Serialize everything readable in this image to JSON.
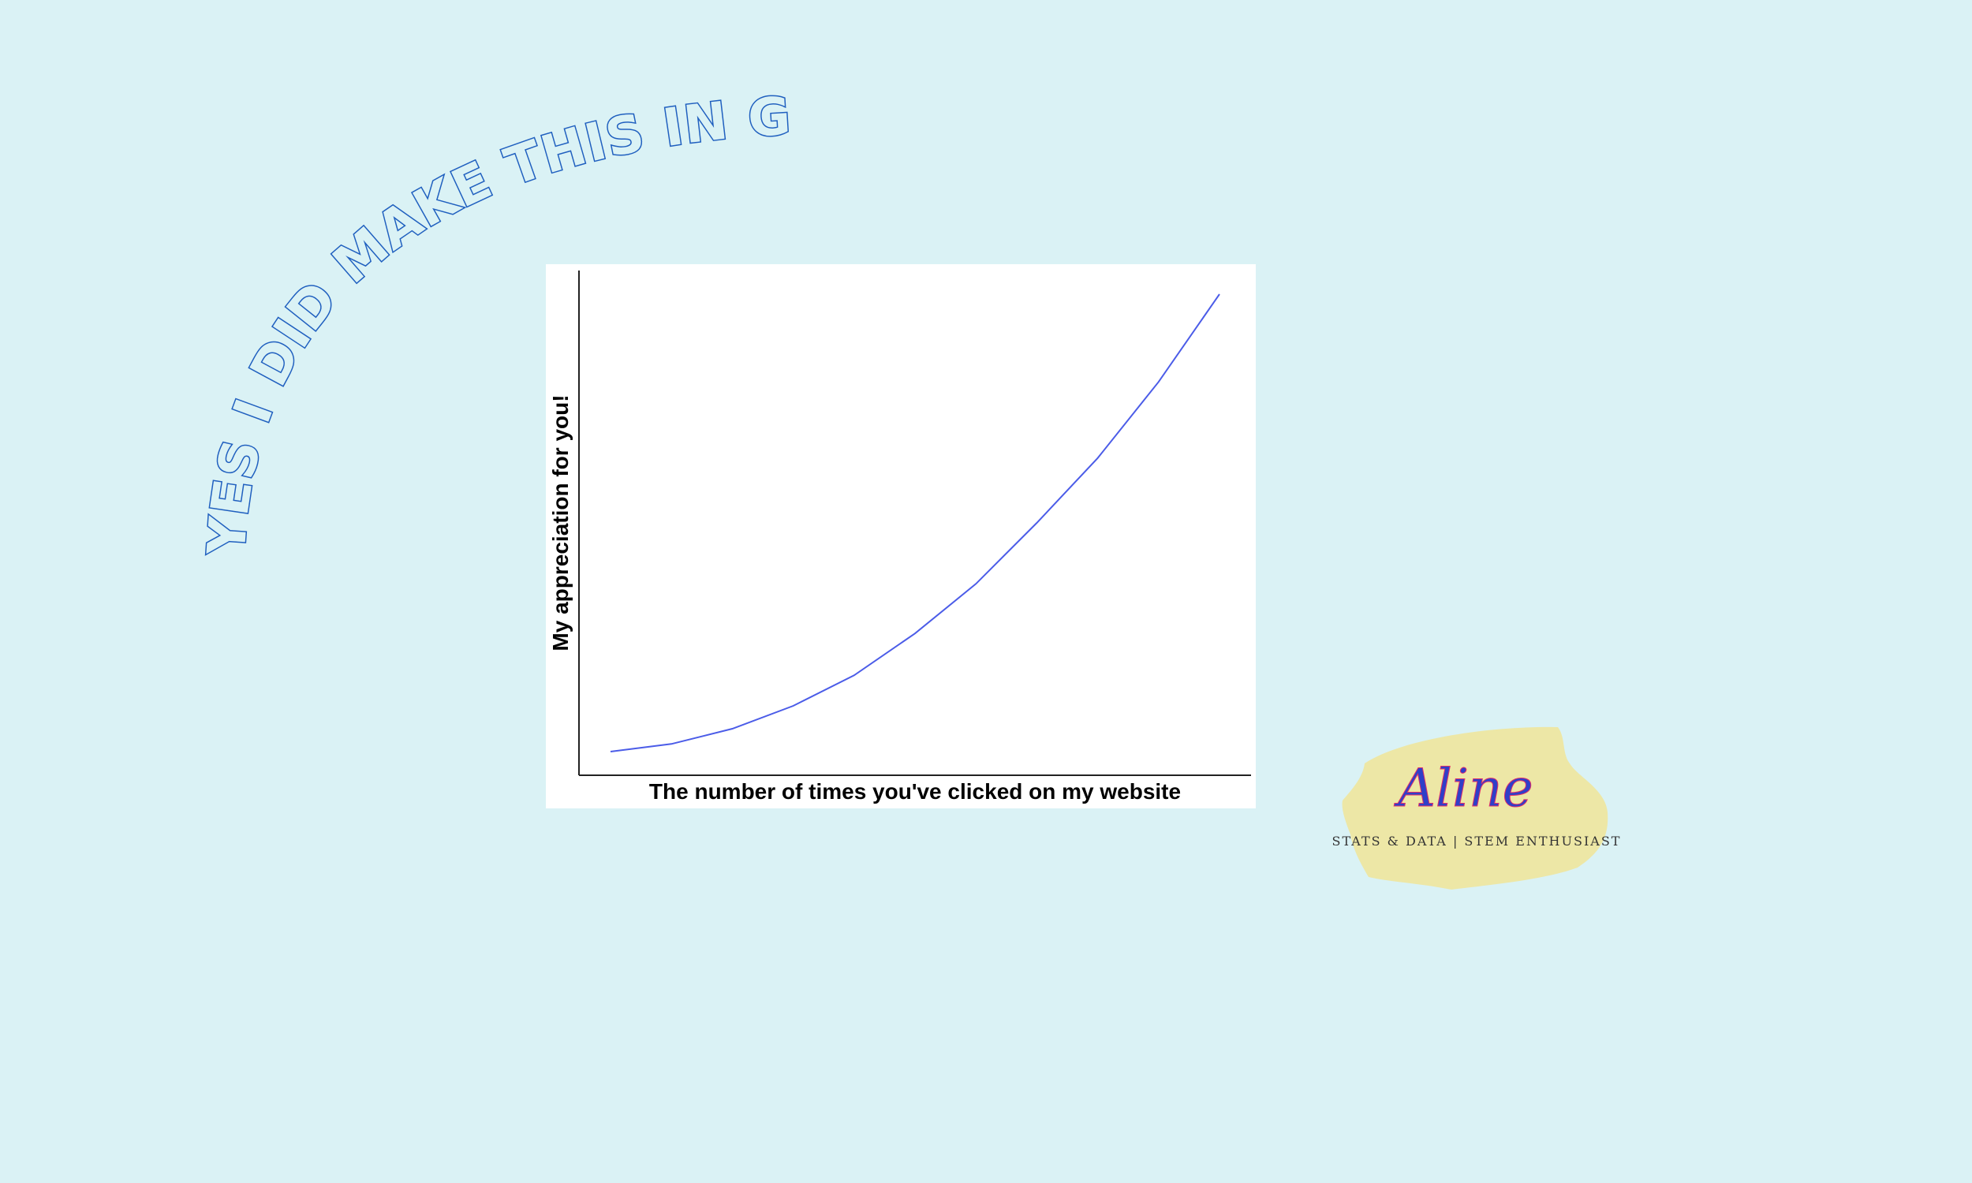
{
  "banner": {
    "text": "YES I DID MAKE THIS IN GGPLOT"
  },
  "chart_data": {
    "type": "line",
    "xlabel": "The number of times you've clicked on my website",
    "ylabel": "My appreciation for you!",
    "x": [
      0,
      1,
      2,
      3,
      4,
      5,
      6,
      7,
      8,
      9,
      10
    ],
    "series": [
      {
        "color": "#4b5ce8",
        "values": [
          0.0,
          0.02,
          0.06,
          0.12,
          0.2,
          0.31,
          0.44,
          0.6,
          0.77,
          0.97,
          1.2
        ]
      }
    ],
    "xlim": [
      0,
      10
    ],
    "ylim": [
      0,
      1.2
    ],
    "grid": false,
    "ticks": false
  },
  "brand": {
    "name": "Aline",
    "tagline": "STATS & DATA | STEM ENTHUSIAST",
    "badge_color": "#ede7a6"
  }
}
